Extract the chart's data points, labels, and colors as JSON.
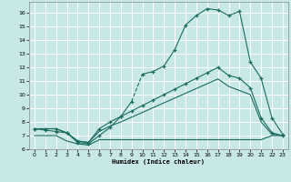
{
  "xlabel": "Humidex (Indice chaleur)",
  "xlim": [
    -0.5,
    23.5
  ],
  "ylim": [
    6.0,
    16.8
  ],
  "yticks": [
    6,
    7,
    8,
    9,
    10,
    11,
    12,
    13,
    14,
    15,
    16
  ],
  "xticks": [
    0,
    1,
    2,
    3,
    4,
    5,
    6,
    7,
    8,
    9,
    10,
    11,
    12,
    13,
    14,
    15,
    16,
    17,
    18,
    19,
    20,
    21,
    22,
    23
  ],
  "bg_color": "#c8e8e8",
  "grid_color": "#ffffff",
  "line_color": "#1a6b5e",
  "curve1_x": [
    0,
    1,
    2,
    3,
    4,
    5,
    6,
    7,
    8,
    9,
    10,
    11,
    12,
    13,
    14,
    15,
    16,
    17,
    18,
    19,
    20,
    21,
    22,
    23
  ],
  "curve1_y": [
    7.5,
    7.4,
    7.3,
    7.2,
    6.5,
    6.4,
    7.0,
    7.6,
    8.4,
    9.5,
    11.5,
    11.7,
    12.1,
    13.3,
    15.1,
    15.8,
    16.3,
    16.2,
    15.8,
    16.1,
    12.4,
    11.2,
    8.3,
    7.1
  ],
  "curve1_dashed_segment": [
    [
      9,
      10
    ],
    [
      9.5,
      13.5
    ]
  ],
  "curve2_x": [
    0,
    1,
    2,
    3,
    4,
    5,
    6,
    7,
    8,
    9,
    10,
    11,
    12,
    13,
    14,
    15,
    16,
    17,
    18,
    19,
    20,
    21,
    22,
    23
  ],
  "curve2_y": [
    7.5,
    7.5,
    7.5,
    7.2,
    6.6,
    6.5,
    7.5,
    8.0,
    8.4,
    8.8,
    9.2,
    9.6,
    10.0,
    10.4,
    10.8,
    11.2,
    11.6,
    12.0,
    11.4,
    11.2,
    10.5,
    8.3,
    7.2,
    7.0
  ],
  "curve3_x": [
    0,
    1,
    2,
    3,
    4,
    5,
    6,
    7,
    8,
    9,
    10,
    11,
    12,
    13,
    14,
    15,
    16,
    17,
    18,
    19,
    20,
    21,
    22,
    23
  ],
  "curve3_y": [
    7.5,
    7.5,
    7.5,
    7.2,
    6.6,
    6.5,
    7.3,
    7.7,
    8.0,
    8.35,
    8.7,
    9.05,
    9.4,
    9.75,
    10.1,
    10.45,
    10.8,
    11.15,
    10.6,
    10.3,
    10.0,
    8.0,
    7.1,
    7.0
  ],
  "curve4_x": [
    0,
    1,
    2,
    3,
    4,
    5,
    6,
    7,
    8,
    9,
    10,
    11,
    12,
    13,
    14,
    15,
    16,
    17,
    18,
    19,
    20,
    21,
    22,
    23
  ],
  "curve4_y": [
    7.0,
    7.0,
    7.0,
    6.6,
    6.4,
    6.3,
    6.7,
    6.7,
    6.7,
    6.7,
    6.7,
    6.7,
    6.7,
    6.7,
    6.7,
    6.7,
    6.7,
    6.7,
    6.7,
    6.7,
    6.7,
    6.7,
    7.0,
    7.0
  ]
}
